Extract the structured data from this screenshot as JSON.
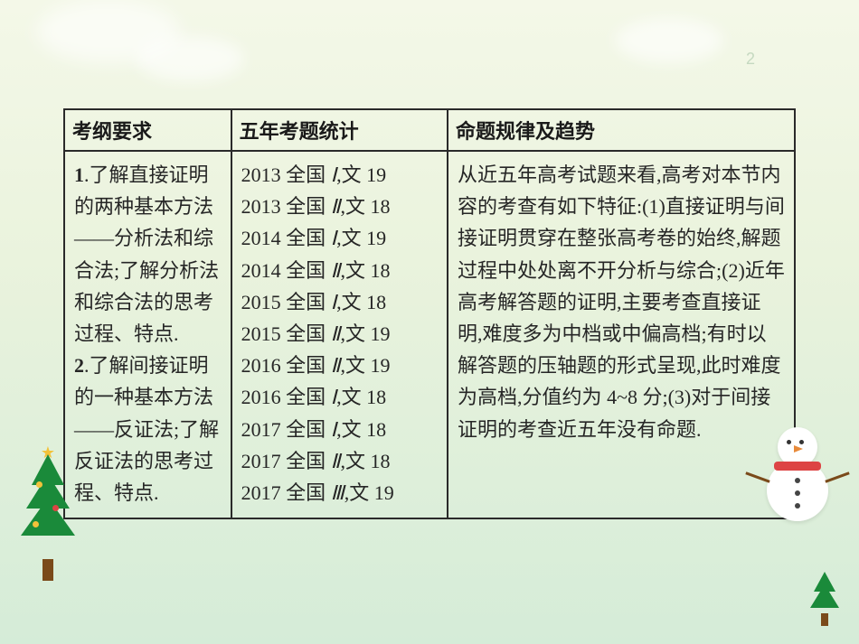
{
  "page_number": "2",
  "background": {
    "gradient_top": "#f4f8e8",
    "gradient_mid": "#eaf3dd",
    "gradient_bottom": "#d5ecd8"
  },
  "table": {
    "border_color": "#2a2a2a",
    "text_color": "#262626",
    "font_size_pt": 16,
    "headers": [
      "考纲要求",
      "五年考题统计",
      "命题规律及趋势"
    ],
    "col1": {
      "parts": [
        {
          "num": "1",
          "text": ".了解直接证明的两种基本方法——分析法和综合法;了解分析法和综合法的思考过程、特点."
        },
        {
          "num": "2",
          "text": ".了解间接证明的一种基本方法——反证法;了解反证法的思考过程、特点."
        }
      ]
    },
    "col2": {
      "items": [
        {
          "year": "2013",
          "src": "全国",
          "roman": "Ⅰ",
          "tail": ",文 19"
        },
        {
          "year": "2013",
          "src": "全国",
          "roman": "Ⅱ",
          "tail": ",文 18"
        },
        {
          "year": "2014",
          "src": "全国",
          "roman": "Ⅰ",
          "tail": ",文 19"
        },
        {
          "year": "2014",
          "src": "全国",
          "roman": "Ⅱ",
          "tail": ",文 18"
        },
        {
          "year": "2015",
          "src": "全国",
          "roman": "Ⅰ",
          "tail": ",文 18"
        },
        {
          "year": "2015",
          "src": "全国",
          "roman": "Ⅱ",
          "tail": ",文 19"
        },
        {
          "year": "2016",
          "src": "全国",
          "roman": "Ⅱ",
          "tail": ",文 19"
        },
        {
          "year": "2016",
          "src": "全国",
          "roman": "Ⅰ",
          "tail": ",文 18"
        },
        {
          "year": "2017",
          "src": "全国",
          "roman": "Ⅰ",
          "tail": ",文 18"
        },
        {
          "year": "2017",
          "src": "全国",
          "roman": "Ⅱ",
          "tail": ",文 18"
        },
        {
          "year": "2017",
          "src": "全国",
          "roman": "Ⅲ",
          "tail": ",文 19"
        }
      ]
    },
    "col3": {
      "text_before_range": " 从近五年高考试题来看,高考对本节内容的考查有如下特征:(1)直接证明与间接证明贯穿在整张高考卷的始终,解题过程中处处离不开分析与综合;(2)近年高考解答题的证明,主要考查直接证明,难度多为中档或中偏高档;有时以解答题的压轴题的形式呈现,此时难度为高档,分值约为 ",
      "range": "4~8",
      "text_after_range": " 分;(3)对于间接证明的考查近五年没有命题."
    }
  },
  "decor": {
    "tree_color": "#1a8a3a",
    "trunk_color": "#7a4a1a",
    "star_color": "#f2c23a",
    "scarf_color": "#d44444",
    "snow_color": "#ffffff"
  }
}
